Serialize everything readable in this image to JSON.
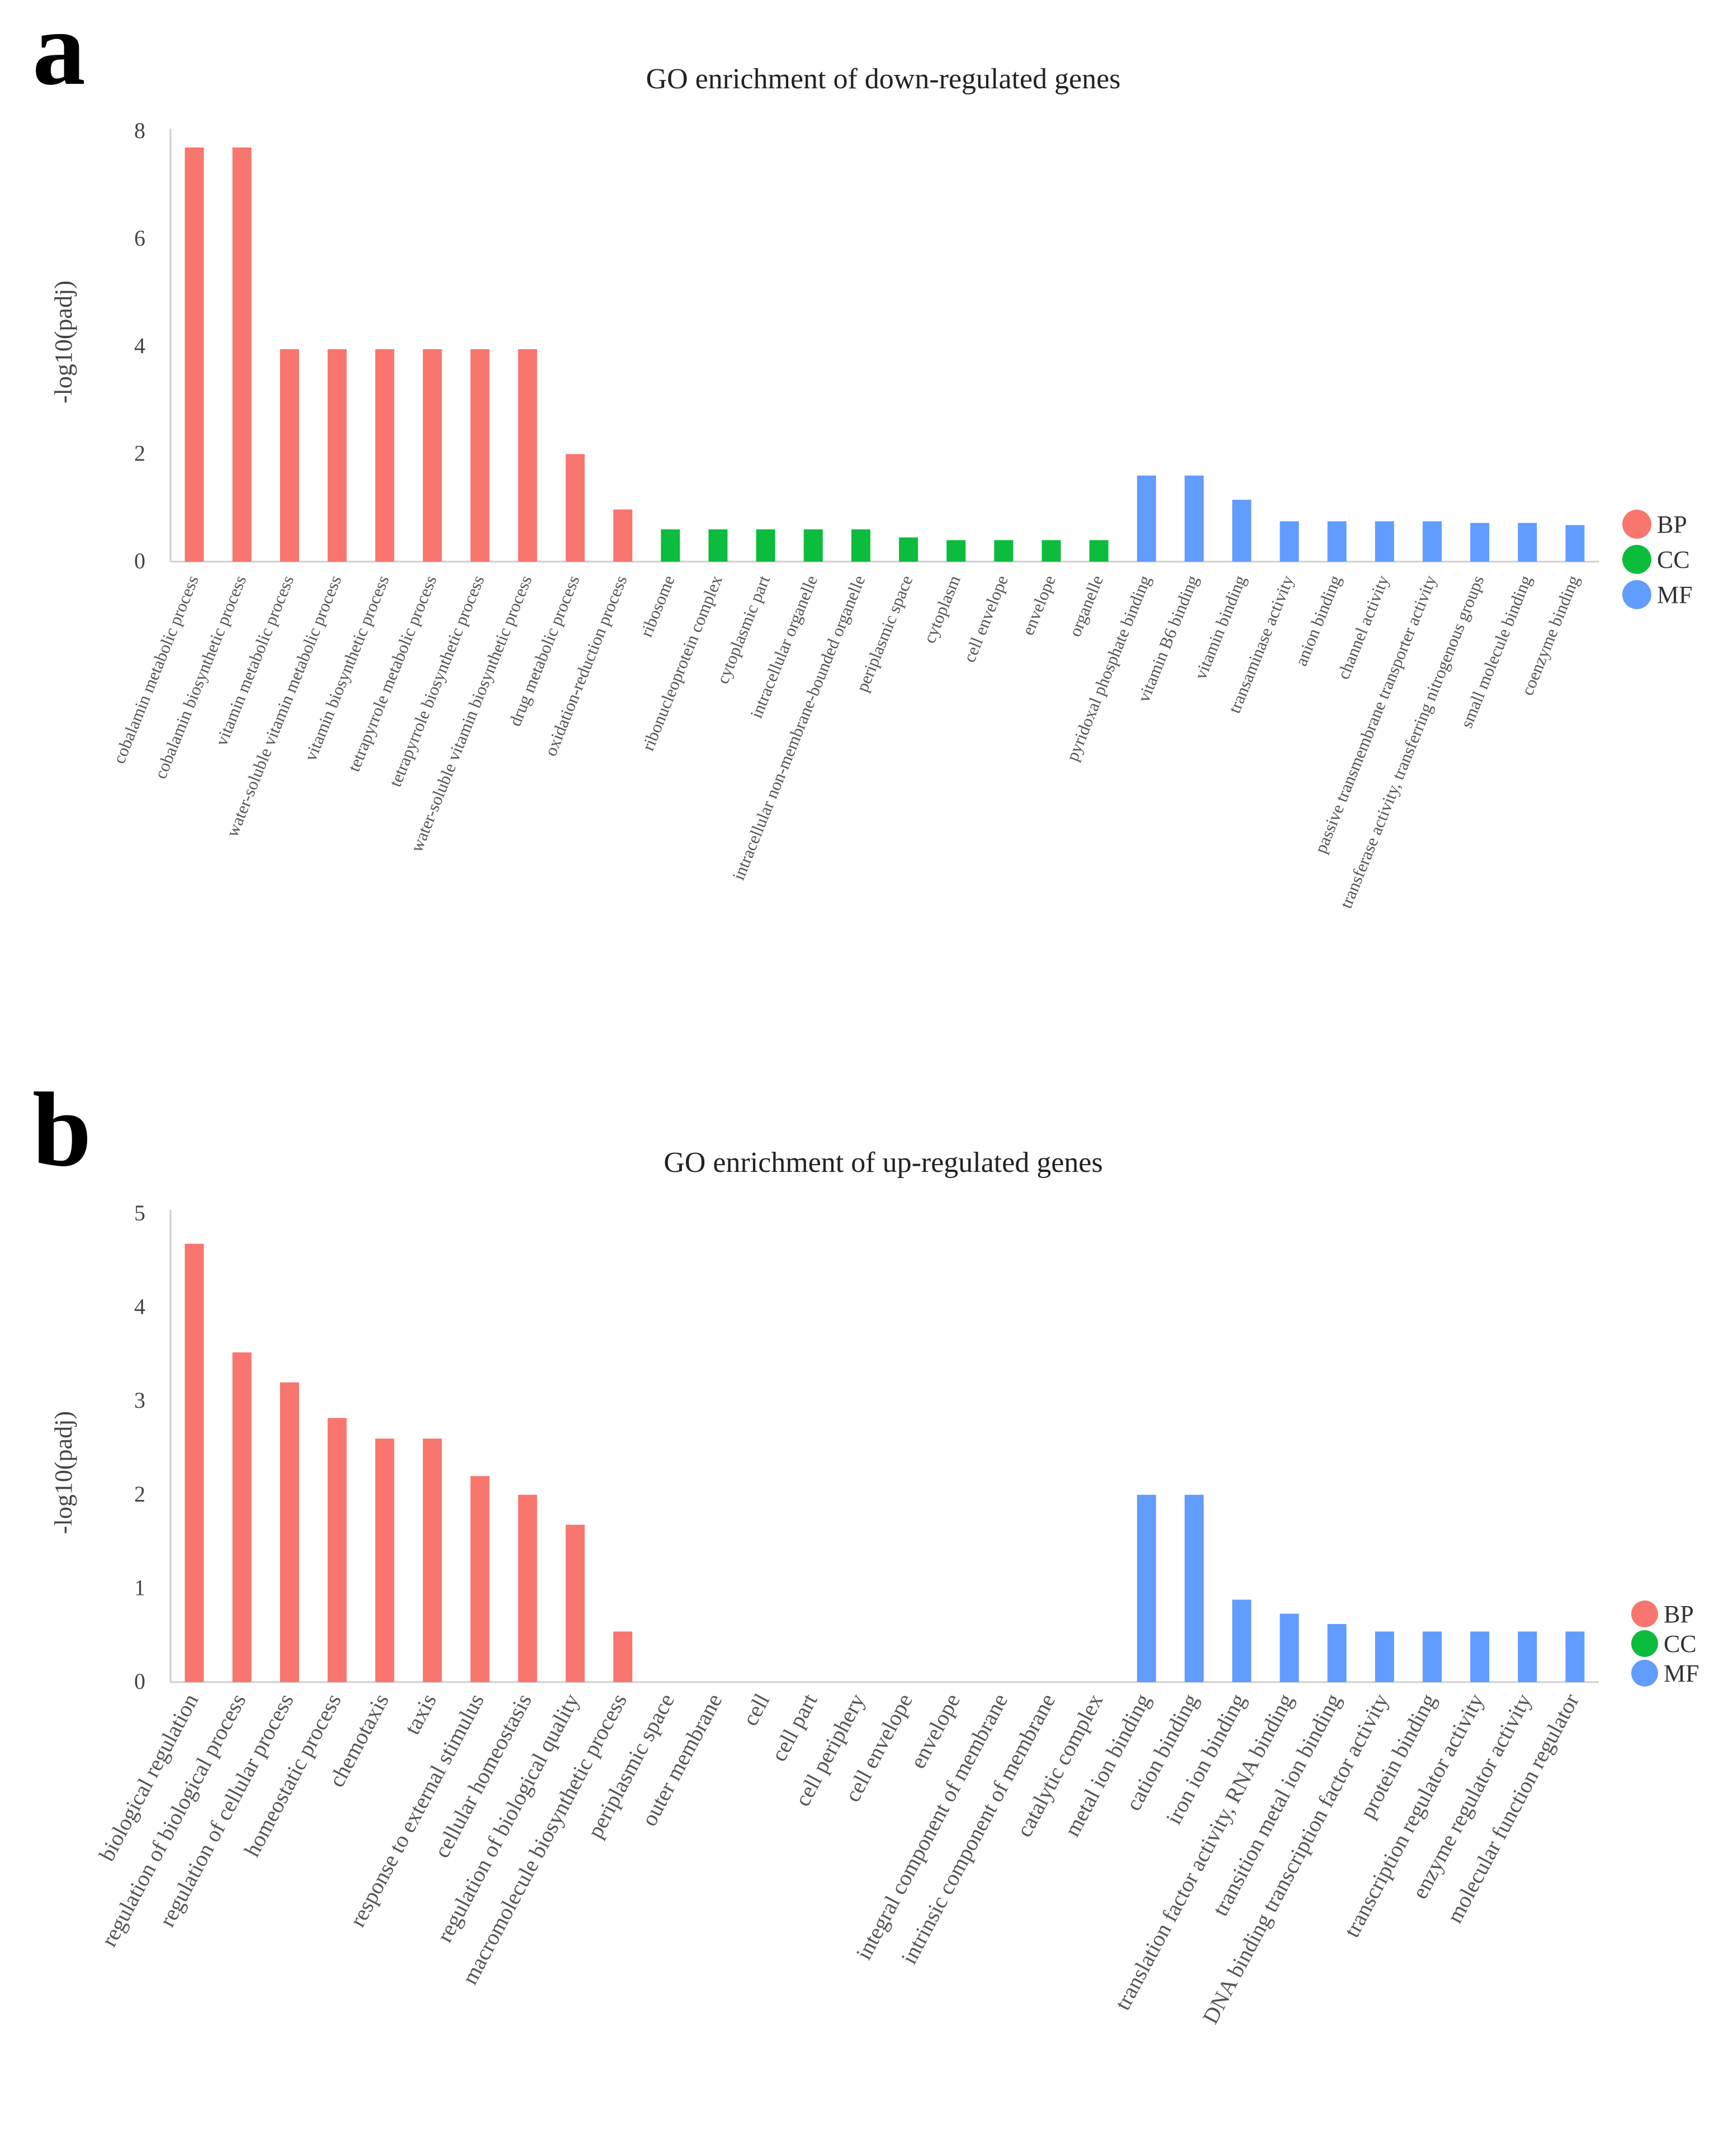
{
  "figure": {
    "panels": [
      "a",
      "b"
    ]
  },
  "colors": {
    "BP": "#f8766d",
    "CC": "#0cbc3d",
    "MF": "#619cff"
  },
  "chart_data": [
    {
      "panel": "a",
      "type": "bar",
      "title": "GO enrichment of down-regulated genes",
      "xlabel": "",
      "ylabel": "-log10(padj)",
      "ylim": [
        0,
        8
      ],
      "yticks": [
        0,
        2,
        4,
        6,
        8
      ],
      "grid": false,
      "legend": {
        "position": "right",
        "entries": [
          "BP",
          "CC",
          "MF"
        ]
      },
      "categories": [
        "cobalamin metabolic process",
        "cobalamin biosynthetic process",
        "vitamin metabolic process",
        "water-soluble vitamin metabolic process",
        "vitamin biosynthetic process",
        "tetrapyrrole metabolic process",
        "tetrapyrrole biosynthetic process",
        "water-soluble vitamin biosynthetic process",
        "drug metabolic process",
        "oxidation-reduction process",
        "ribosome",
        "ribonucleoprotein complex",
        "cytoplasmic part",
        "intracellular organelle",
        "intracellular non-membrane-bounded organelle",
        "periplasmic space",
        "cytoplasm",
        "cell envelope",
        "envelope",
        "organelle",
        "pyridoxal phosphate binding",
        "vitamin B6 binding",
        "vitamin binding",
        "transaminase activity",
        "anion binding",
        "channel activity",
        "passive transmembrane transporter activity",
        "transferase activity, transferring nitrogenous groups",
        "small molecule binding",
        "coenzyme binding"
      ],
      "values": [
        7.7,
        7.7,
        3.95,
        3.95,
        3.95,
        3.95,
        3.95,
        3.95,
        2.0,
        0.97,
        0.6,
        0.6,
        0.6,
        0.6,
        0.6,
        0.45,
        0.4,
        0.4,
        0.4,
        0.4,
        1.6,
        1.6,
        1.15,
        0.75,
        0.75,
        0.75,
        0.75,
        0.72,
        0.72,
        0.68
      ],
      "groups": [
        "BP",
        "BP",
        "BP",
        "BP",
        "BP",
        "BP",
        "BP",
        "BP",
        "BP",
        "BP",
        "CC",
        "CC",
        "CC",
        "CC",
        "CC",
        "CC",
        "CC",
        "CC",
        "CC",
        "CC",
        "MF",
        "MF",
        "MF",
        "MF",
        "MF",
        "MF",
        "MF",
        "MF",
        "MF",
        "MF"
      ]
    },
    {
      "panel": "b",
      "type": "bar",
      "title": "GO enrichment of up-regulated genes",
      "xlabel": "",
      "ylabel": "-log10(padj)",
      "ylim": [
        0,
        5
      ],
      "yticks": [
        0,
        1,
        2,
        3,
        4,
        5
      ],
      "grid": false,
      "legend": {
        "position": "right",
        "entries": [
          "BP",
          "CC",
          "MF"
        ]
      },
      "categories": [
        "biological regulation",
        "regulation of biological process",
        "regulation of cellular process",
        "homeostatic process",
        "chemotaxis",
        "taxis",
        "response to external stimulus",
        "cellular homeostasis",
        "regulation of biological quality",
        "macromolecule biosynthetic process",
        "periplasmic space",
        "outer membrane",
        "cell",
        "cell part",
        "cell periphery",
        "cell envelope",
        "envelope",
        "integral component of membrane",
        "intrinsic component of membrane",
        "catalytic complex",
        "metal ion binding",
        "cation binding",
        "iron ion binding",
        "translation factor activity, RNA binding",
        "transition metal ion binding",
        "DNA binding transcription factor activity",
        "protein binding",
        "transcription regulator activity",
        "enzyme regulator activity",
        "molecular function regulator"
      ],
      "values": [
        4.68,
        3.52,
        3.2,
        2.82,
        2.6,
        2.6,
        2.2,
        2.0,
        1.68,
        0.54,
        0,
        0,
        0,
        0,
        0,
        0,
        0,
        0,
        0,
        0,
        2.0,
        2.0,
        0.88,
        0.73,
        0.62,
        0.54,
        0.54,
        0.54,
        0.54,
        0.54
      ],
      "groups": [
        "BP",
        "BP",
        "BP",
        "BP",
        "BP",
        "BP",
        "BP",
        "BP",
        "BP",
        "BP",
        "CC",
        "CC",
        "CC",
        "CC",
        "CC",
        "CC",
        "CC",
        "CC",
        "CC",
        "CC",
        "MF",
        "MF",
        "MF",
        "MF",
        "MF",
        "MF",
        "MF",
        "MF",
        "MF",
        "MF"
      ]
    }
  ]
}
